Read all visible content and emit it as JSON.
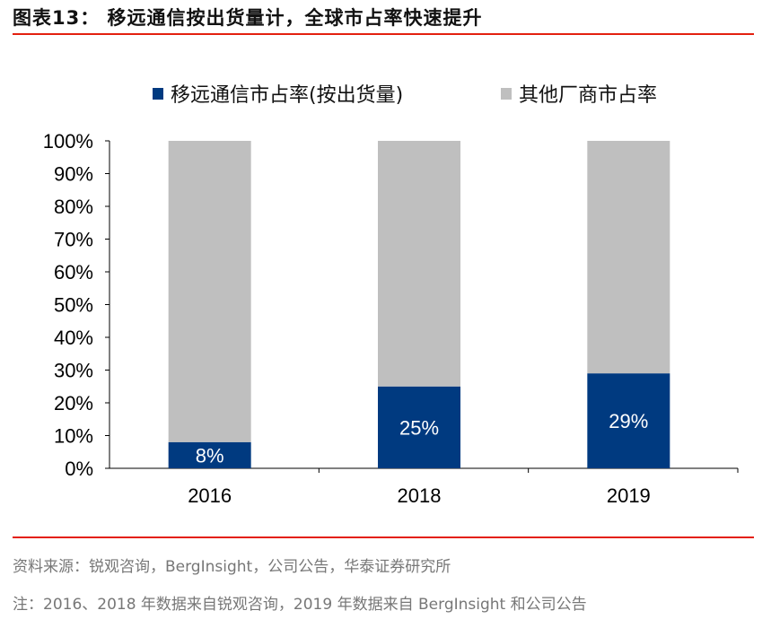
{
  "title": "图表13：  移远通信按出货量计，全球市占率快速提升",
  "colors": {
    "quectel": "#003a80",
    "others": "#bfbfbf",
    "rule": "#e3200f"
  },
  "chart_data": {
    "type": "bar",
    "stacked": true,
    "categories": [
      "2016",
      "2018",
      "2019"
    ],
    "series": [
      {
        "name": "移远通信市占率(按出货量)",
        "values": [
          8,
          25,
          29
        ],
        "labels": [
          "8%",
          "25%",
          "29%"
        ]
      },
      {
        "name": "其他厂商市占率",
        "values": [
          92,
          75,
          71
        ]
      }
    ],
    "ylim": [
      0,
      100
    ],
    "yticks": [
      "0%",
      "10%",
      "20%",
      "30%",
      "40%",
      "50%",
      "60%",
      "70%",
      "80%",
      "90%",
      "100%"
    ],
    "legend": "top",
    "grid": false
  },
  "footer": {
    "source": "资料来源：锐观咨询，BergInsight，公司公告，华泰证券研究所",
    "note": "注：2016、2018 年数据来自锐观咨询，2019 年数据来自 BergInsight 和公司公告"
  }
}
